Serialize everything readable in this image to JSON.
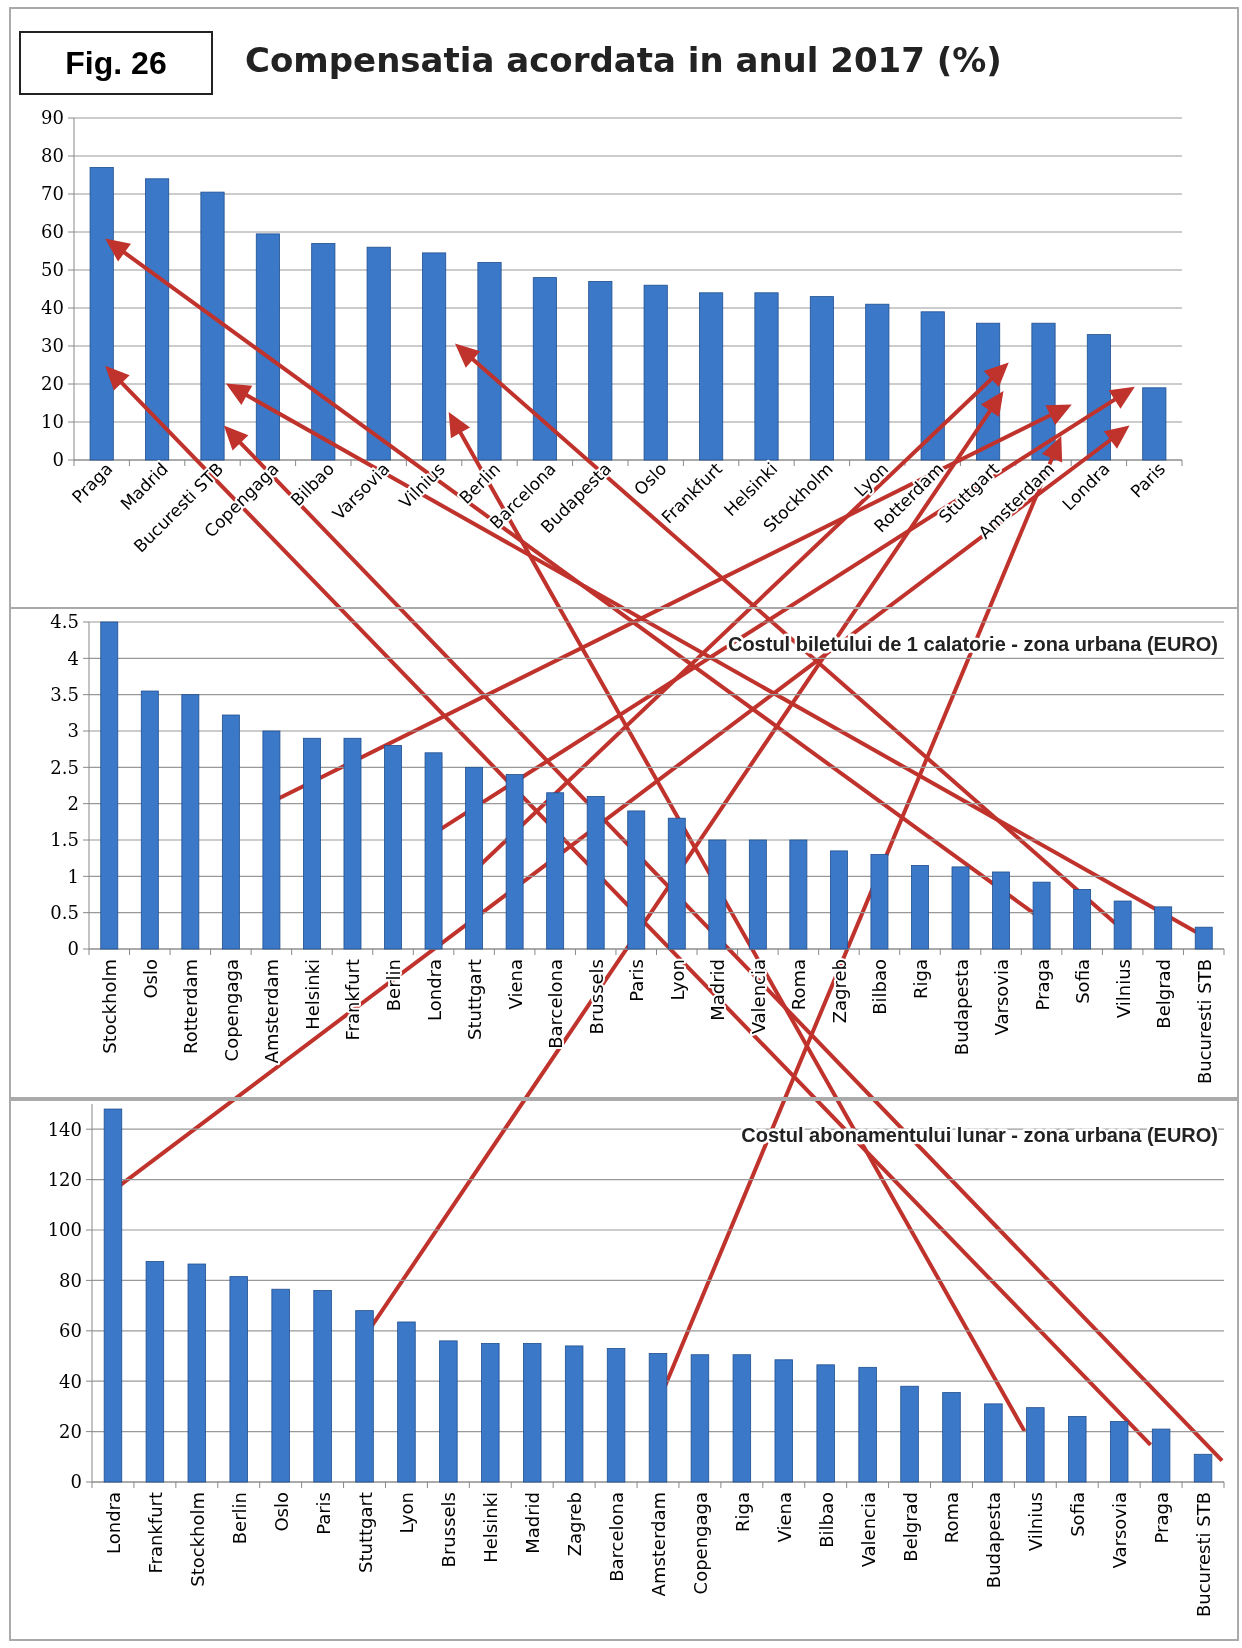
{
  "chart_data": [
    {
      "type": "bar",
      "title": "Compensatia acordata in anul 2017  (%)",
      "annotations": [
        "Fig. 26"
      ],
      "categories": [
        "Praga",
        "Madrid",
        "Bucuresti STB",
        "Copengaga",
        "Bilbao",
        "Varsovia",
        "Vilnius",
        "Berlin",
        "Barcelona",
        "Budapesta",
        "Oslo",
        "Frankfurt",
        "Helsinki",
        "Stockholm",
        "Lyon",
        "Rotterdam",
        "Stuttgart",
        "Amsterdam",
        "Londra",
        "Paris"
      ],
      "values": [
        77,
        74,
        70.5,
        59.5,
        57,
        56,
        54.5,
        52,
        48,
        47,
        46,
        44,
        44,
        43,
        41,
        39,
        36,
        36,
        33,
        19
      ],
      "color": "#3b78c8",
      "ylim": [
        0,
        90
      ],
      "yticks": [
        0,
        10,
        20,
        30,
        40,
        50,
        60,
        70,
        80,
        90
      ],
      "grid": "y"
    },
    {
      "type": "bar",
      "title": "Costul biletului de 1 calatorie - zona urbana (EURO)",
      "categories": [
        "Stockholm",
        "Oslo",
        "Rotterdam",
        "Copengaga",
        "Amsterdam",
        "Helsinki",
        "Frankfurt",
        "Berlin",
        "Londra",
        "Stuttgart",
        "Viena",
        "Barcelona",
        "Brussels",
        "Paris",
        "Lyon",
        "Madrid",
        "Valencia",
        "Roma",
        "Zagreb",
        "Bilbao",
        "Riga",
        "Budapesta",
        "Varsovia",
        "Praga",
        "Sofia",
        "Vilnius",
        "Belgrad",
        "Bucuresti STB"
      ],
      "values": [
        4.5,
        3.55,
        3.5,
        3.22,
        3.0,
        2.9,
        2.9,
        2.8,
        2.7,
        2.5,
        2.4,
        2.15,
        2.1,
        1.9,
        1.8,
        1.5,
        1.5,
        1.5,
        1.35,
        1.3,
        1.15,
        1.13,
        1.06,
        0.92,
        0.82,
        0.66,
        0.58,
        0.3
      ],
      "color": "#3b78c8",
      "ylim": [
        0,
        4.5
      ],
      "yticks": [
        0,
        0.5,
        1,
        1.5,
        2,
        2.5,
        3,
        3.5,
        4,
        4.5
      ],
      "grid": "y"
    },
    {
      "type": "bar",
      "title": "Costul abonamentului lunar - zona urbana (EURO)",
      "categories": [
        "Londra",
        "Frankfurt",
        "Stockholm",
        "Berlin",
        "Oslo",
        "Paris",
        "Stuttgart",
        "Lyon",
        "Brussels",
        "Helsinki",
        "Madrid",
        "Zagreb",
        "Barcelona",
        "Amsterdam",
        "Copengaga",
        "Riga",
        "Viena",
        "Bilbao",
        "Valencia",
        "Belgrad",
        "Roma",
        "Budapesta",
        "Vilnius",
        "Sofia",
        "Varsovia",
        "Praga",
        "Bucuresti STB"
      ],
      "values": [
        148,
        87.5,
        86.5,
        81.5,
        76.5,
        76,
        68,
        63.5,
        56,
        55,
        55,
        54,
        53,
        51,
        50.5,
        50.5,
        48.5,
        46.5,
        45.5,
        38,
        35.5,
        31,
        29.5,
        26,
        24,
        21,
        11
      ],
      "color": "#3b78c8",
      "ylim": [
        0,
        150
      ],
      "yticks": [
        0,
        20,
        40,
        60,
        80,
        100,
        120,
        140
      ],
      "grid": "y"
    }
  ]
}
